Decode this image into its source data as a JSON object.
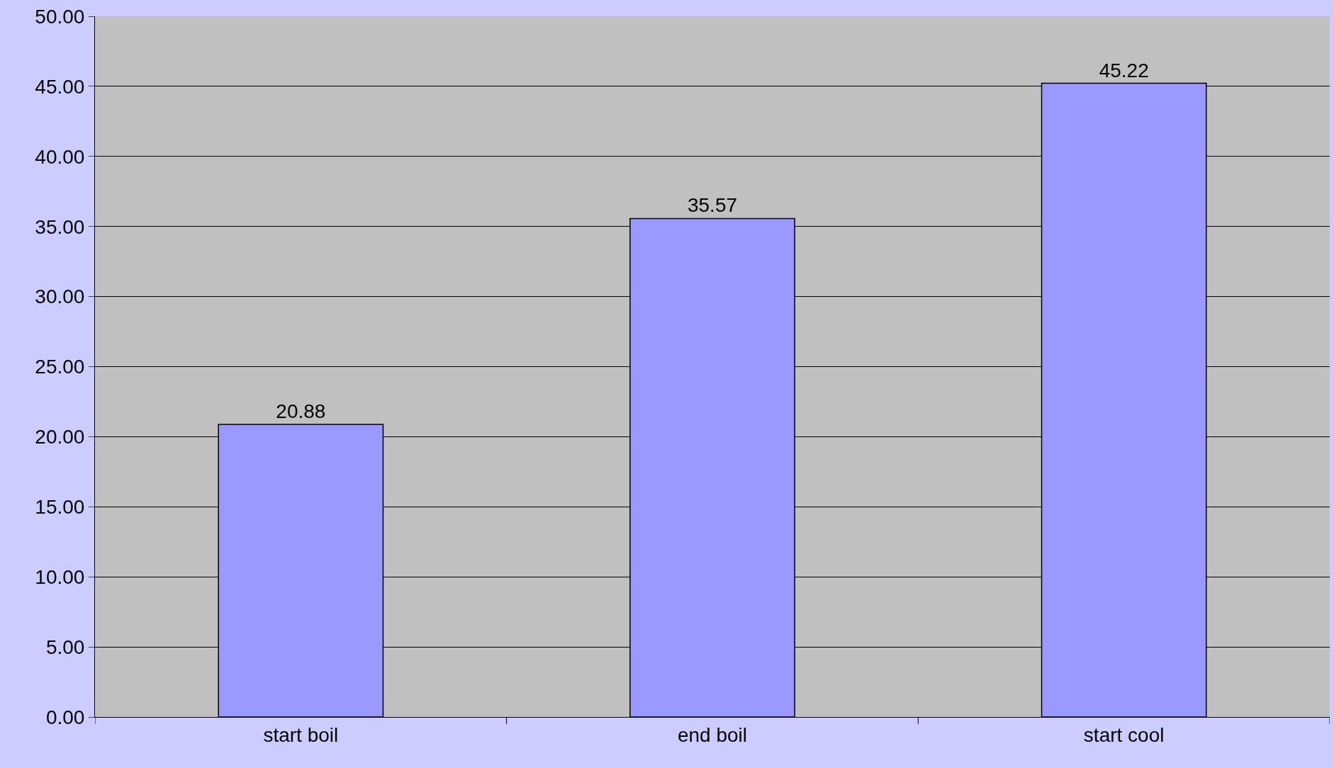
{
  "chart_data": {
    "type": "bar",
    "categories": [
      "start boil",
      "end boil",
      "start cool"
    ],
    "values": [
      20.88,
      35.57,
      45.22
    ],
    "color": "#9999ff",
    "data_labels": true,
    "ylim": [
      0,
      50
    ],
    "yticks": [
      {
        "value": 0,
        "label": "0.00"
      },
      {
        "value": 5,
        "label": "5.00"
      },
      {
        "value": 10,
        "label": "10.00"
      },
      {
        "value": 15,
        "label": "15.00"
      },
      {
        "value": 20,
        "label": "20.00"
      },
      {
        "value": 25,
        "label": "25.00"
      },
      {
        "value": 30,
        "label": "30.00"
      },
      {
        "value": 35,
        "label": "35.00"
      },
      {
        "value": 40,
        "label": "40.00"
      },
      {
        "value": 45,
        "label": "45.00"
      },
      {
        "value": 50,
        "label": "50.00"
      }
    ],
    "grid": "y",
    "legend": false
  }
}
